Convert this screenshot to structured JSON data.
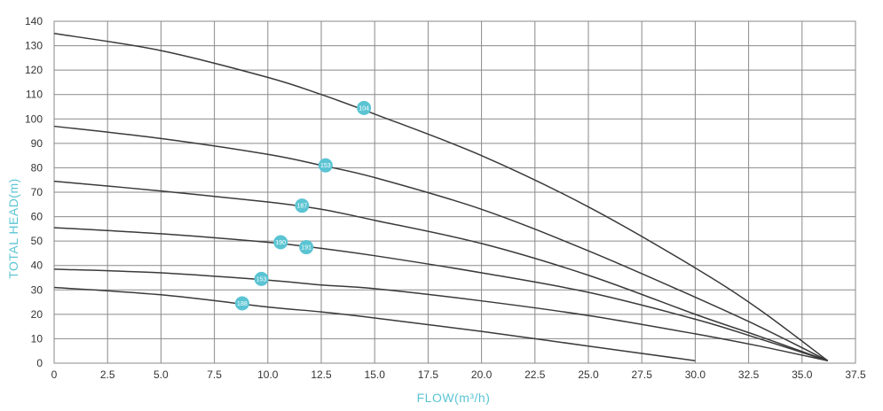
{
  "chart_data": {
    "type": "line",
    "xlabel": "FLOW(m³/h)",
    "ylabel": "TOTAL HEAD(m)",
    "xlim": [
      0,
      37.5
    ],
    "ylim": [
      0,
      140
    ],
    "grid": true,
    "x_ticks": [
      "0",
      "2.5",
      "5.0",
      "7.5",
      "10.0",
      "12.5",
      "15.0",
      "17.5",
      "20.0",
      "22.5",
      "25.0",
      "27.5",
      "30.0",
      "32.5",
      "35.0",
      "37.5"
    ],
    "y_ticks": [
      "0",
      "10",
      "20",
      "30",
      "40",
      "50",
      "60",
      "70",
      "80",
      "90",
      "100",
      "110",
      "120",
      "130",
      "140"
    ],
    "line_color": "#3a3a3a",
    "marker_color": "#5bc4d3",
    "axis_title_color": "#5bc4d3",
    "series": [
      {
        "points": [
          [
            0,
            135
          ],
          [
            5,
            128
          ],
          [
            10,
            117
          ],
          [
            12.5,
            110
          ],
          [
            15,
            102
          ],
          [
            20,
            85
          ],
          [
            25,
            64
          ],
          [
            30,
            39
          ],
          [
            33,
            22
          ],
          [
            36.2,
            1
          ]
        ],
        "marker": {
          "x": 14.5,
          "y": 104.5,
          "label": "104"
        }
      },
      {
        "points": [
          [
            0,
            97
          ],
          [
            5,
            92
          ],
          [
            10,
            85.5
          ],
          [
            12.5,
            81
          ],
          [
            15,
            76
          ],
          [
            20,
            63
          ],
          [
            25,
            46
          ],
          [
            30,
            27
          ],
          [
            33,
            15
          ],
          [
            36.2,
            1
          ]
        ],
        "marker": {
          "x": 12.7,
          "y": 81,
          "label": "153"
        }
      },
      {
        "points": [
          [
            0,
            74.5
          ],
          [
            5,
            70.5
          ],
          [
            10,
            66
          ],
          [
            12.5,
            63
          ],
          [
            15,
            58.5
          ],
          [
            20,
            49
          ],
          [
            25,
            36
          ],
          [
            30,
            20
          ],
          [
            33,
            11
          ],
          [
            36.2,
            1
          ]
        ],
        "marker": {
          "x": 11.6,
          "y": 64.5,
          "label": "187"
        }
      },
      {
        "points": [
          [
            0,
            55.5
          ],
          [
            5,
            53
          ],
          [
            10,
            49.5
          ],
          [
            12.5,
            47
          ],
          [
            15,
            44
          ],
          [
            20,
            37
          ],
          [
            25,
            29
          ],
          [
            30,
            18
          ],
          [
            33,
            10
          ],
          [
            36.2,
            1
          ]
        ],
        "marker": {
          "x": 11.8,
          "y": 47.5,
          "label": "191"
        }
      },
      {
        "points": [
          [
            0,
            38.5
          ],
          [
            5,
            37
          ],
          [
            10,
            34
          ],
          [
            12.5,
            32
          ],
          [
            15,
            30.5
          ],
          [
            20,
            25.5
          ],
          [
            25,
            19.5
          ],
          [
            30,
            12
          ],
          [
            33,
            7
          ],
          [
            36.2,
            1
          ]
        ],
        "marker": {
          "x": 9.7,
          "y": 34.5,
          "label": "153"
        }
      },
      {
        "points": [
          [
            0,
            31
          ],
          [
            5,
            28
          ],
          [
            10,
            23
          ],
          [
            12.5,
            21
          ],
          [
            15,
            18.5
          ],
          [
            20,
            13
          ],
          [
            25,
            7
          ],
          [
            30,
            1
          ]
        ],
        "marker": {
          "x": 8.8,
          "y": 24.5,
          "label": "188"
        }
      }
    ],
    "extra_markers": [
      {
        "x": 10.6,
        "y": 49.5,
        "label": "190"
      }
    ]
  }
}
